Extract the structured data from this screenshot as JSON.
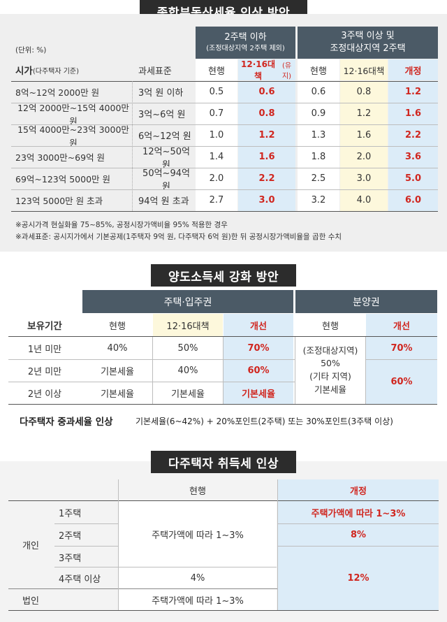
{
  "section1": {
    "title": "종합부동산세율 인상 방안",
    "unit": "(단위: %)",
    "group_a": {
      "line1": "2주택 이하",
      "line2": "(조정대상지역 2주택 제외)"
    },
    "group_b": {
      "line1": "3주택 이상 및",
      "line2": "조정대상지역 2주택"
    },
    "col_price": "시가",
    "col_price_note": "(다주택자 기준)",
    "col_base": "과세표준",
    "col_current_a": "현행",
    "col_plan_a": "12·16대책",
    "col_plan_a_note": "(유지)",
    "col_current_b": "현행",
    "col_plan_b": "12·16대책",
    "col_revised_b": "개정",
    "rows": [
      {
        "price": "8억~12억 2000만 원",
        "base": "3억 원 이하",
        "cur_a": "0.5",
        "plan_a": "0.6",
        "cur_b": "0.6",
        "plan_b": "0.8",
        "rev_b": "1.2"
      },
      {
        "price": "12억 2000만~15억 4000만 원",
        "base": "3억~6억 원",
        "cur_a": "0.7",
        "plan_a": "0.8",
        "cur_b": "0.9",
        "plan_b": "1.2",
        "rev_b": "1.6"
      },
      {
        "price": "15억 4000만~23억 3000만 원",
        "base": "6억~12억 원",
        "cur_a": "1.0",
        "plan_a": "1.2",
        "cur_b": "1.3",
        "plan_b": "1.6",
        "rev_b": "2.2"
      },
      {
        "price": "23억 3000만~69억 원",
        "base": "12억~50억 원",
        "cur_a": "1.4",
        "plan_a": "1.6",
        "cur_b": "1.8",
        "plan_b": "2.0",
        "rev_b": "3.6"
      },
      {
        "price": "69억~123억 5000만 원",
        "base": "50억~94억 원",
        "cur_a": "2.0",
        "plan_a": "2.2",
        "cur_b": "2.5",
        "plan_b": "3.0",
        "rev_b": "5.0"
      },
      {
        "price": "123억 5000만 원 초과",
        "base": "94억 원 초과",
        "cur_a": "2.7",
        "plan_a": "3.0",
        "cur_b": "3.2",
        "plan_b": "4.0",
        "rev_b": "6.0"
      }
    ],
    "note1": "※공시가격 현실화율 75~85%, 공정시장가액비율 95% 적용한 경우",
    "note2": "※과세표준: 공시지가에서 기본공제(1주택자 9억 원, 다주택자 6억 원)한 뒤 공정시장가액비율을 곱한 수치"
  },
  "section2": {
    "title": "양도소득세 강화 방안",
    "group_a": "주택·입주권",
    "group_b": "분양권",
    "col_period": "보유기간",
    "col_current": "현행",
    "col_plan": "12·16대책",
    "col_improve": "개선",
    "col_current_b": "현행",
    "col_improve_b": "개선",
    "rows": [
      {
        "period": "1년 미만",
        "current": "40%",
        "plan": "50%",
        "improve": "70%"
      },
      {
        "period": "2년 미만",
        "current": "기본세율",
        "plan": "40%",
        "improve": "60%"
      },
      {
        "period": "2년 이상",
        "current": "기본세율",
        "plan": "기본세율",
        "improve": "기본세율"
      }
    ],
    "presale_current": [
      "(조정대상지역)",
      "50%",
      "(기타 지역)",
      "기본세율"
    ],
    "presale_improve": [
      "70%",
      "60%"
    ],
    "multi_label": "다주택자 중과세율 인상",
    "multi_text": "기본세율(6~42%) + 20%포인트(2주택) 또는 30%포인트(3주택 이상)"
  },
  "section3": {
    "title": "다주택자 취득세 인상",
    "col_current": "현행",
    "col_revised": "개정",
    "personal": "개인",
    "corporate": "법인",
    "rows": [
      "1주택",
      "2주택",
      "3주택",
      "4주택 이상"
    ],
    "current_personal_1to3": "주택가액에 따라 1~3%",
    "current_personal_4": "4%",
    "current_corporate": "주택가액에 따라 1~3%",
    "revised_1": "주택가액에 따라 1~3%",
    "revised_2": "8%",
    "revised_3plus": "12%"
  }
}
